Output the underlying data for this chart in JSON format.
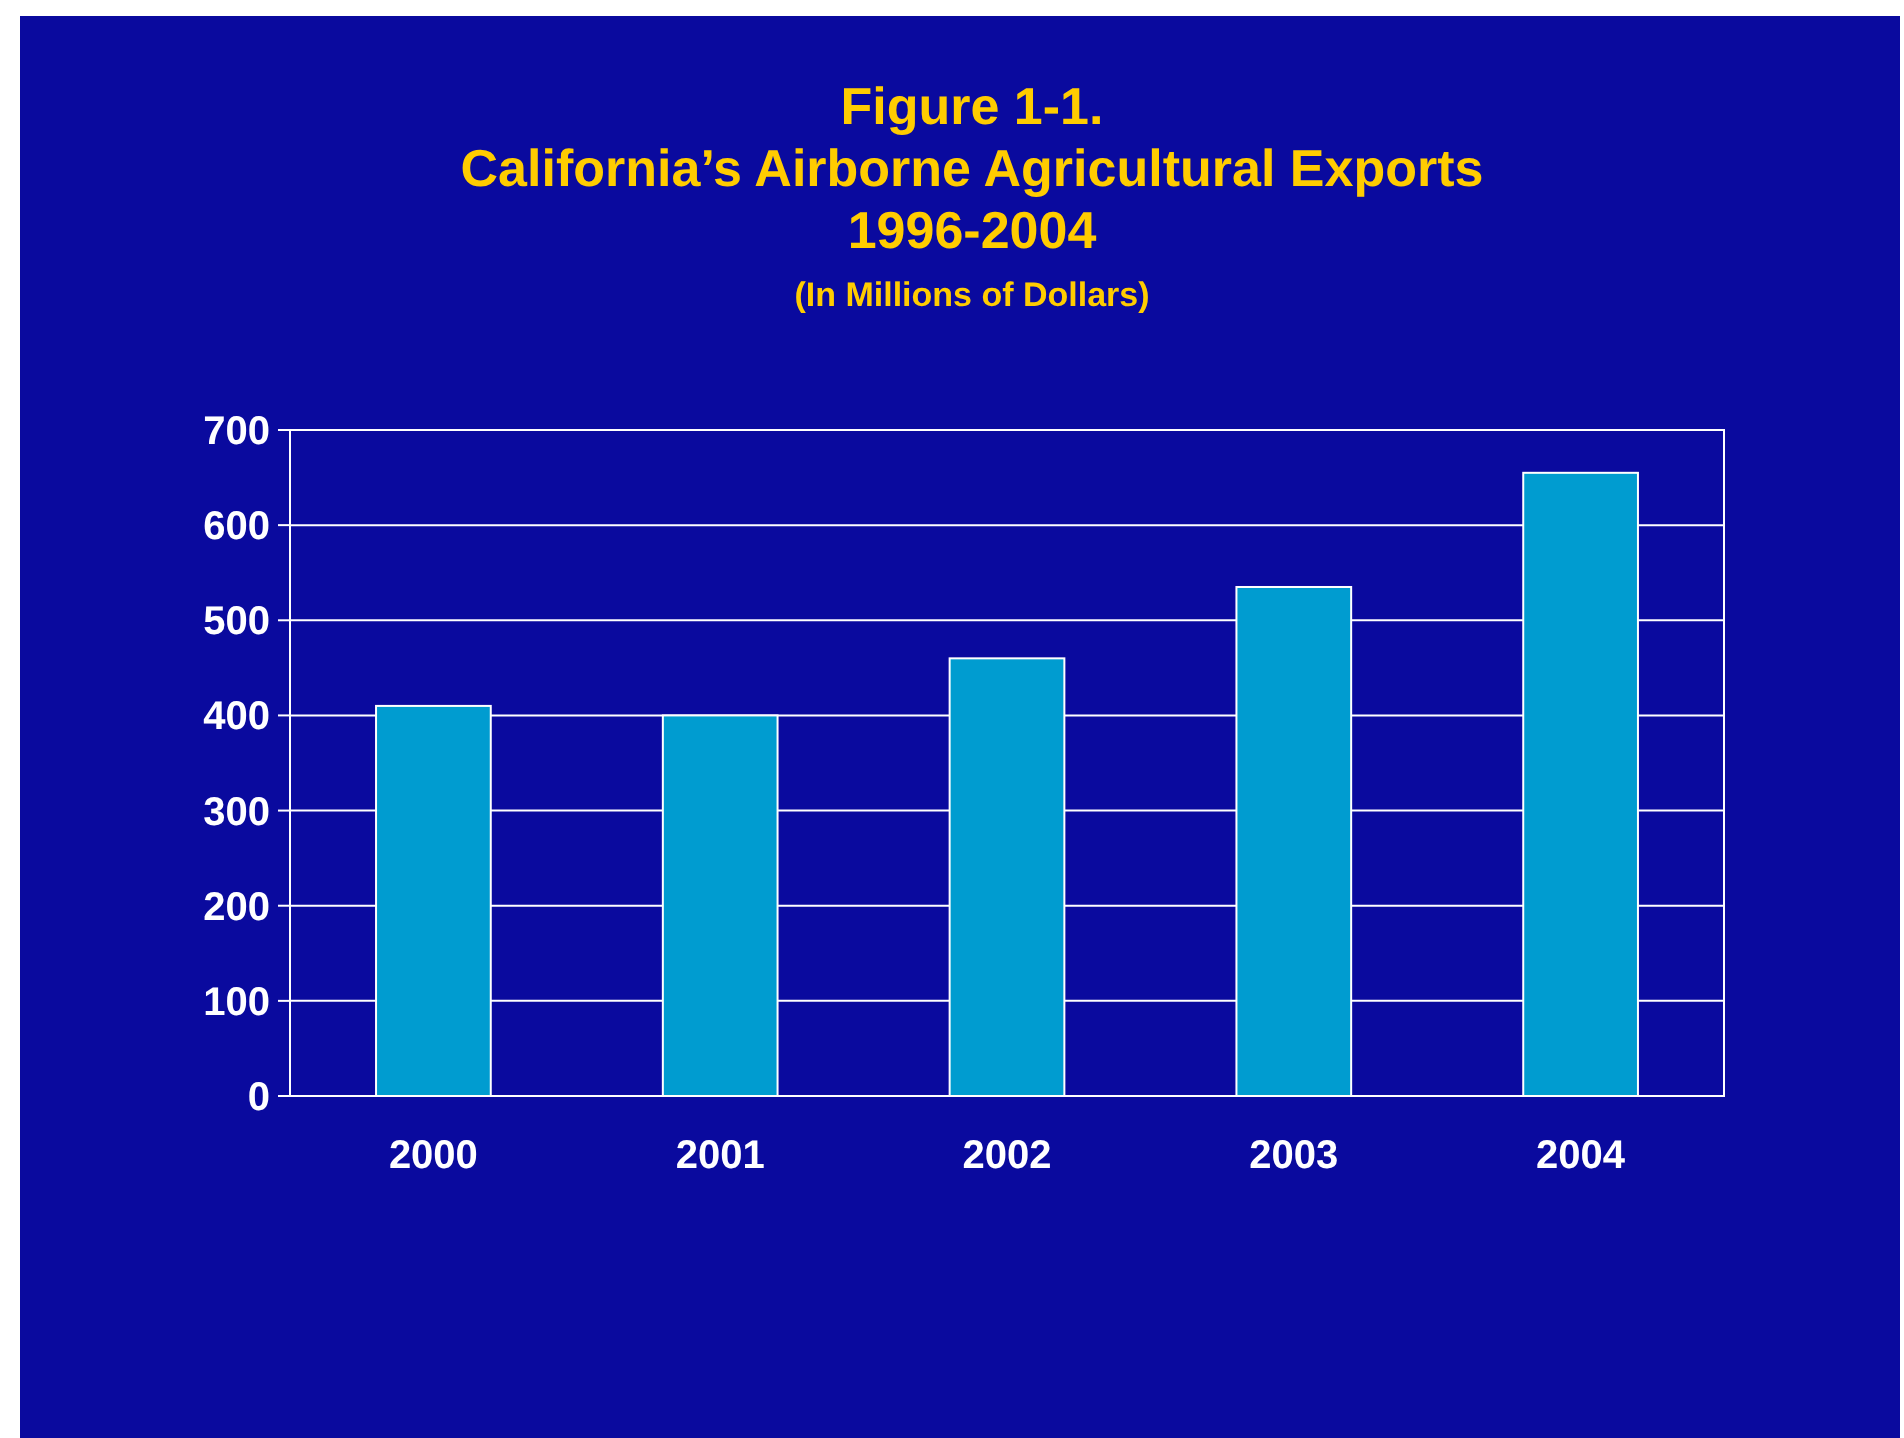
{
  "chart_data": {
    "type": "bar",
    "title": "Figure 1-1.\nCalifornia’s Airborne Agricultural Exports\n1996-2004",
    "subtitle": "(In Millions of Dollars)",
    "categories": [
      "2000",
      "2001",
      "2002",
      "2003",
      "2004"
    ],
    "values": [
      410,
      400,
      460,
      535,
      655
    ],
    "color": "#009cd0",
    "ylim": [
      0,
      700
    ],
    "yticks": [
      0,
      100,
      200,
      300,
      400,
      500,
      600,
      700
    ],
    "grid": "y"
  }
}
